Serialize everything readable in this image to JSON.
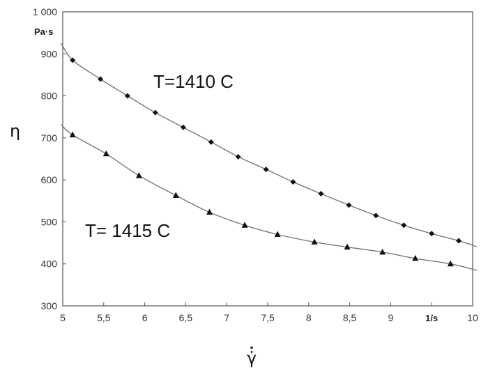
{
  "chart_data": {
    "type": "line",
    "xlabel": "γ̇",
    "ylabel": "η",
    "x_unit": "1/s",
    "y_unit": "Pa·s",
    "xlim": [
      5,
      10
    ],
    "ylim": [
      300,
      1000
    ],
    "x_ticks": [
      "5",
      "5,5",
      "6",
      "6,5",
      "7",
      "7,5",
      "8",
      "8,5",
      "9",
      "1/s",
      "10"
    ],
    "y_ticks": [
      "300",
      "400",
      "500",
      "600",
      "700",
      "800",
      "900",
      "1 000"
    ],
    "grid": false,
    "colors": {
      "curve": "#777777",
      "marker": "#111111",
      "frame": "#555555"
    },
    "series": [
      {
        "name": "T=1410 C",
        "marker": "diamond",
        "x": [
          5.12,
          5.46,
          5.79,
          6.13,
          6.47,
          6.81,
          7.14,
          7.48,
          7.81,
          8.15,
          8.49,
          8.82,
          9.16,
          9.5,
          9.83
        ],
        "y": [
          885,
          840,
          800,
          760,
          725,
          690,
          655,
          625,
          595,
          567,
          540,
          515,
          492,
          472,
          455
        ],
        "fit_x": [
          4.98,
          10.05
        ],
        "fit_y": [
          925,
          441
        ]
      },
      {
        "name": "T= 1415 C",
        "marker": "triangle",
        "x": [
          5.12,
          5.53,
          5.93,
          6.38,
          6.79,
          7.22,
          7.62,
          8.07,
          8.47,
          8.9,
          9.3,
          9.73
        ],
        "y": [
          707,
          662,
          610,
          563,
          523,
          492,
          470,
          452,
          440,
          428,
          413,
          400
        ],
        "fit_x": [
          4.98,
          10.05
        ],
        "fit_y": [
          732,
          385
        ]
      }
    ]
  }
}
